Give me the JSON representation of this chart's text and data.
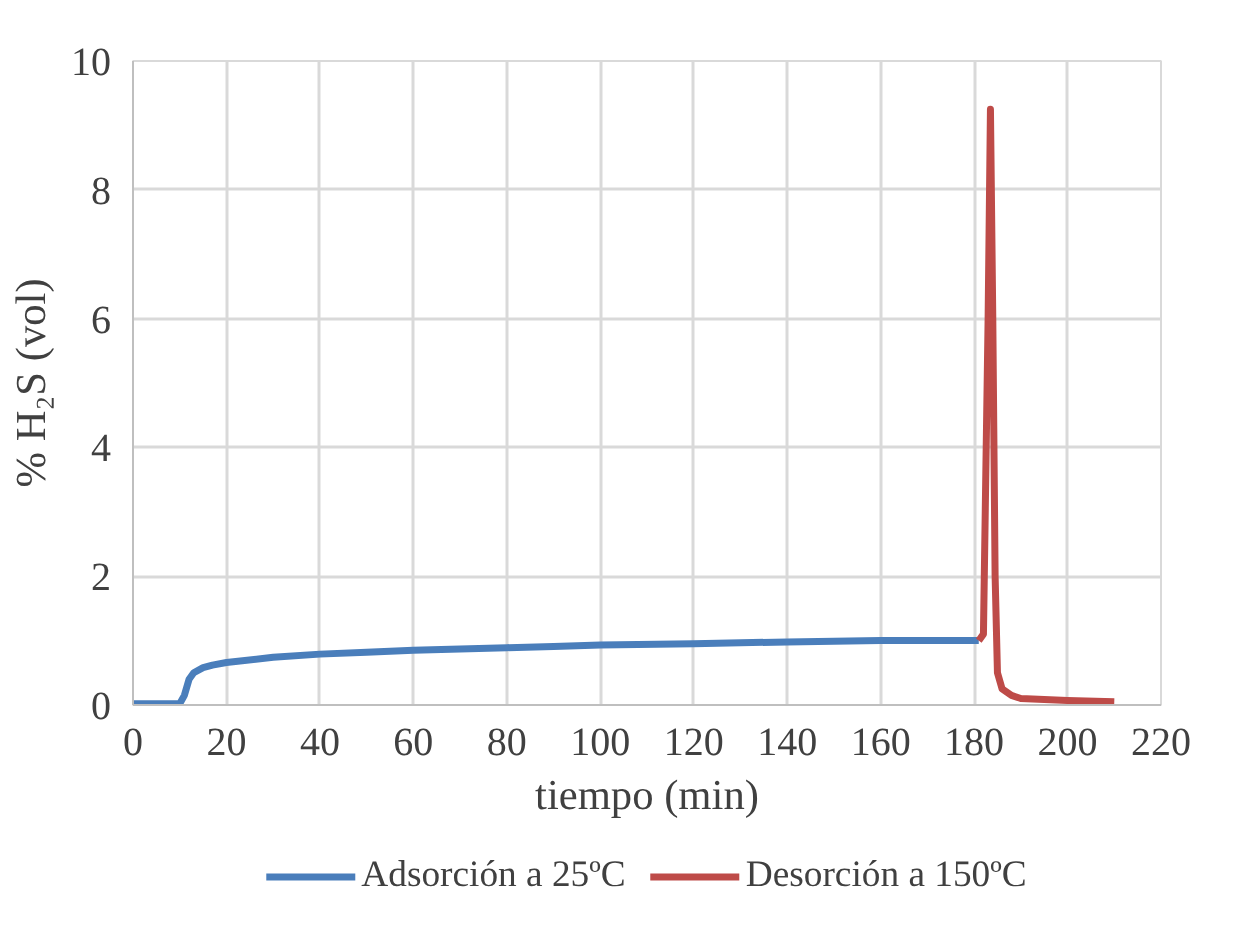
{
  "chart_data": {
    "type": "line",
    "xlabel": "tiempo (min)",
    "ylabel": "% H₂S (vol)",
    "xlim": [
      0,
      220
    ],
    "xticks": [
      0,
      20,
      40,
      60,
      80,
      100,
      120,
      140,
      160,
      180,
      200,
      220
    ],
    "ylim": [
      0,
      10
    ],
    "yticks": [
      0,
      2,
      4,
      6,
      8,
      10
    ],
    "grid": true,
    "legend": "bottom",
    "marker": "none",
    "line_style": "solid",
    "series": [
      {
        "name": "Adsorción a 25ºC",
        "color": "#4a7ebb",
        "x": [
          0,
          5,
          10,
          11,
          12,
          13,
          15,
          17,
          20,
          30,
          40,
          50,
          60,
          70,
          80,
          90,
          100,
          120,
          140,
          160,
          181
        ],
        "values": [
          0.02,
          0.02,
          0.02,
          0.15,
          0.4,
          0.5,
          0.58,
          0.62,
          0.66,
          0.74,
          0.79,
          0.82,
          0.85,
          0.87,
          0.89,
          0.91,
          0.93,
          0.95,
          0.98,
          1.0,
          1.0
        ]
      },
      {
        "name": "Desorción a 150ºC",
        "color": "#be4b48",
        "x": [
          181,
          182,
          183,
          183.5,
          184,
          184.5,
          185,
          186,
          188,
          190,
          200,
          210
        ],
        "values": [
          1.0,
          1.1,
          6.0,
          9.25,
          6.0,
          2.0,
          0.5,
          0.25,
          0.15,
          0.1,
          0.07,
          0.05
        ]
      }
    ]
  }
}
